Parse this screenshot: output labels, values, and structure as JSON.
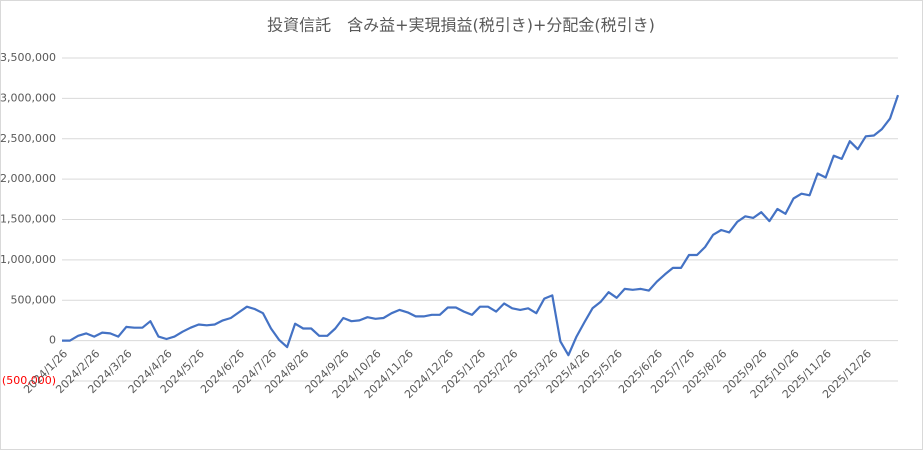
{
  "chart_data": {
    "type": "line",
    "title": "投資信託　含み益+実現損益(税引き)+分配金(税引き)",
    "categories": [
      "2024/1/26",
      null,
      null,
      null,
      "2024/2/26",
      null,
      null,
      null,
      "2024/3/26",
      null,
      null,
      null,
      null,
      "2024/4/26",
      null,
      null,
      null,
      "2024/5/26",
      null,
      null,
      null,
      null,
      "2024/6/26",
      null,
      null,
      null,
      "2024/7/26",
      null,
      null,
      null,
      "2024/8/26",
      null,
      null,
      null,
      null,
      "2024/9/26",
      null,
      null,
      null,
      "2024/10/26",
      null,
      null,
      null,
      "2024/11/26",
      null,
      null,
      null,
      null,
      "2024/12/26",
      null,
      null,
      null,
      "2025/1/26",
      null,
      null,
      null,
      "2025/2/26",
      null,
      null,
      null,
      null,
      "2025/3/26",
      null,
      null,
      null,
      "2025/4/26",
      null,
      null,
      null,
      "2025/5/26",
      null,
      null,
      null,
      null,
      "2025/6/26",
      null,
      null,
      null,
      "2025/7/26",
      null,
      null,
      null,
      "2025/8/26",
      null,
      null,
      null,
      null,
      "2025/9/26",
      null,
      null,
      null,
      "2025/10/26",
      null,
      null,
      null,
      "2025/11/26",
      null,
      null,
      null,
      null,
      "2025/12/26",
      null,
      null,
      null,
      null
    ],
    "series": [
      {
        "color": "#4472c4",
        "values": [
          0,
          0,
          60000,
          90000,
          50000,
          100000,
          90000,
          50000,
          170000,
          160000,
          160000,
          240000,
          50000,
          20000,
          50000,
          110000,
          160000,
          200000,
          190000,
          200000,
          250000,
          280000,
          350000,
          420000,
          390000,
          340000,
          150000,
          10000,
          -80000,
          210000,
          150000,
          150000,
          60000,
          60000,
          150000,
          280000,
          240000,
          250000,
          290000,
          270000,
          280000,
          340000,
          380000,
          350000,
          300000,
          300000,
          320000,
          320000,
          410000,
          410000,
          360000,
          320000,
          420000,
          420000,
          360000,
          460000,
          400000,
          380000,
          400000,
          340000,
          520000,
          560000,
          -10000,
          -180000,
          50000,
          230000,
          400000,
          480000,
          600000,
          530000,
          640000,
          630000,
          640000,
          620000,
          730000,
          820000,
          900000,
          900000,
          1060000,
          1060000,
          1160000,
          1310000,
          1370000,
          1340000,
          1470000,
          1540000,
          1520000,
          1590000,
          1480000,
          1630000,
          1570000,
          1760000,
          1820000,
          1800000,
          2070000,
          2020000,
          2290000,
          2250000,
          2470000,
          2370000,
          2530000,
          2540000,
          2620000,
          2750000,
          3040000
        ]
      }
    ],
    "ylim": [
      -500000,
      3500000
    ],
    "yticks": [
      {
        "value": -500000,
        "label": "(500,000)"
      },
      0,
      {
        "value": 500000,
        "label": "500,000"
      },
      {
        "value": 1000000,
        "label": "1,000,000"
      },
      {
        "value": 1500000,
        "label": "1,500,000"
      },
      {
        "value": 2000000,
        "label": "2,000,000"
      },
      {
        "value": 2500000,
        "label": "2,500,000"
      },
      {
        "value": 3000000,
        "label": "3,000,000"
      },
      {
        "value": 3500000,
        "label": "3,500,000"
      }
    ],
    "negative_tick_color": "#ff0000",
    "grid": true
  }
}
